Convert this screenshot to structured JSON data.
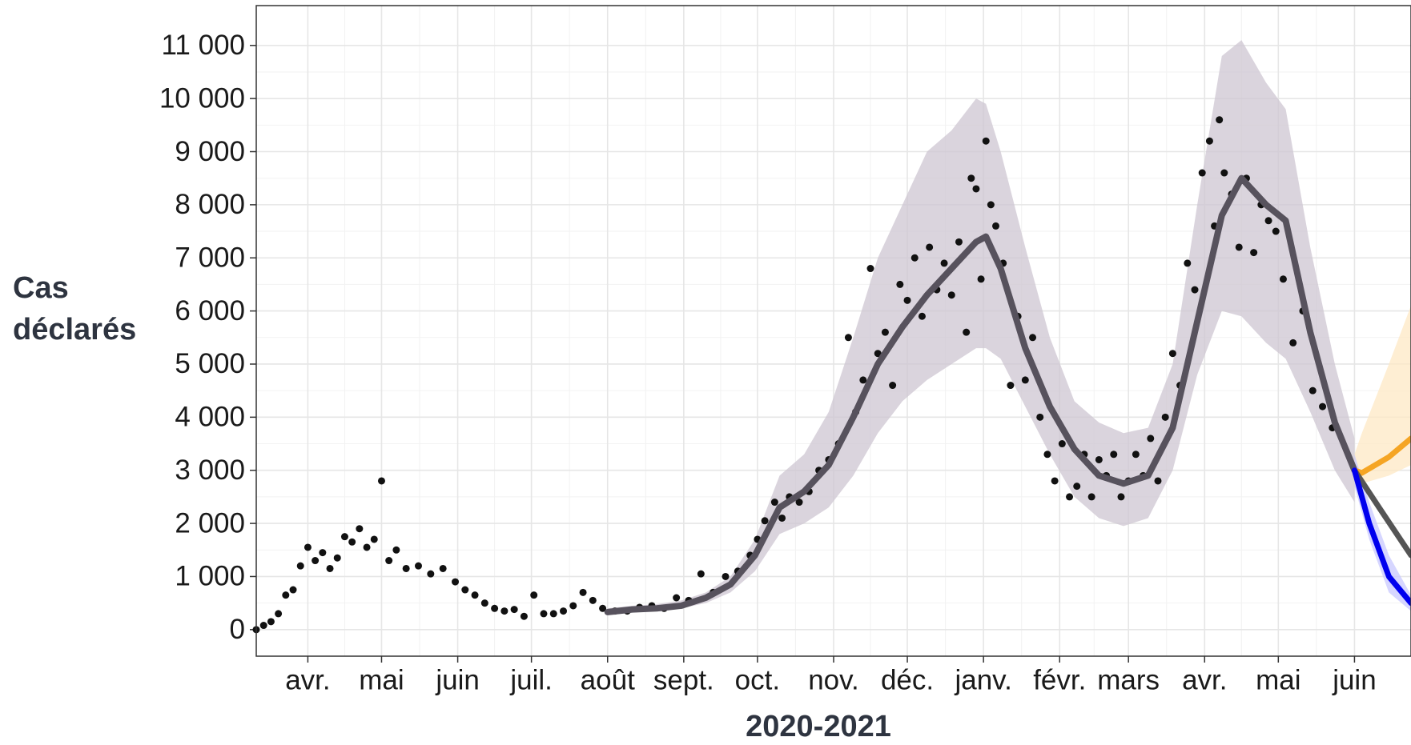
{
  "chart_data": {
    "type": "line",
    "y_label": "Cas déclarés",
    "x_label": "2020-2021",
    "xlim": [
      -21,
      449
    ],
    "ylim": [
      -500,
      11750
    ],
    "grid": true,
    "xticks": [
      {
        "value": 0,
        "label": "avr."
      },
      {
        "value": 30,
        "label": "mai"
      },
      {
        "value": 61,
        "label": "juin"
      },
      {
        "value": 91,
        "label": "juil."
      },
      {
        "value": 122,
        "label": "août"
      },
      {
        "value": 153,
        "label": "sept."
      },
      {
        "value": 183,
        "label": "oct."
      },
      {
        "value": 214,
        "label": "nov."
      },
      {
        "value": 244,
        "label": "déc."
      },
      {
        "value": 275,
        "label": "janv."
      },
      {
        "value": 306,
        "label": "févr."
      },
      {
        "value": 334,
        "label": "mars"
      },
      {
        "value": 365,
        "label": "avr."
      },
      {
        "value": 395,
        "label": "mai"
      },
      {
        "value": 426,
        "label": "juin"
      }
    ],
    "yticks": [
      0,
      {
        "value": 1000,
        "label": "1 000"
      },
      {
        "value": 2000,
        "label": "2 000"
      },
      {
        "value": 3000,
        "label": "3 000"
      },
      {
        "value": 4000,
        "label": "4 000"
      },
      {
        "value": 5000,
        "label": "5 000"
      },
      {
        "value": 6000,
        "label": "6 000"
      },
      {
        "value": 7000,
        "label": "7 000"
      },
      {
        "value": 8000,
        "label": "8 000"
      },
      {
        "value": 9000,
        "label": "9 000"
      },
      {
        "value": 10000,
        "label": "10 000"
      },
      {
        "value": 11000,
        "label": "11 000"
      }
    ],
    "points": {
      "color": "#111111",
      "x": [
        -21,
        -18,
        -15,
        -12,
        -9,
        -6,
        -3,
        0,
        3,
        6,
        9,
        12,
        15,
        18,
        21,
        24,
        27,
        30,
        33,
        36,
        40,
        45,
        50,
        55,
        60,
        64,
        68,
        72,
        76,
        80,
        84,
        88,
        92,
        96,
        100,
        104,
        108,
        112,
        116,
        120,
        125,
        130,
        135,
        140,
        145,
        150,
        155,
        160,
        165,
        170,
        175,
        180,
        183,
        186,
        190,
        193,
        196,
        200,
        204,
        208,
        212,
        216,
        220,
        223,
        226,
        229,
        232,
        235,
        238,
        241,
        244,
        247,
        250,
        253,
        256,
        259,
        262,
        265,
        268,
        270,
        272,
        274,
        276,
        278,
        280,
        283,
        286,
        289,
        292,
        295,
        298,
        301,
        304,
        307,
        310,
        313,
        316,
        319,
        322,
        325,
        328,
        331,
        334,
        337,
        340,
        343,
        346,
        349,
        352,
        355,
        358,
        361,
        364,
        367,
        369,
        371,
        373,
        376,
        379,
        382,
        385,
        388,
        391,
        394,
        397,
        401,
        405,
        409,
        413,
        417
      ],
      "y": [
        0,
        80,
        150,
        300,
        650,
        750,
        1200,
        1550,
        1300,
        1450,
        1150,
        1350,
        1750,
        1650,
        1900,
        1550,
        1700,
        2800,
        1300,
        1500,
        1150,
        1200,
        1050,
        1150,
        900,
        750,
        650,
        500,
        400,
        350,
        380,
        250,
        650,
        300,
        300,
        350,
        450,
        700,
        550,
        400,
        350,
        350,
        420,
        450,
        400,
        600,
        550,
        1050,
        700,
        1000,
        1100,
        1400,
        1700,
        2050,
        2400,
        2100,
        2500,
        2400,
        2600,
        3000,
        3200,
        3500,
        5500,
        4100,
        4700,
        6800,
        5200,
        5600,
        4600,
        6500,
        6200,
        7000,
        5900,
        7200,
        6400,
        6900,
        6300,
        7300,
        5600,
        8500,
        8300,
        6600,
        9200,
        8000,
        7600,
        6900,
        4600,
        5900,
        4700,
        5500,
        4000,
        3300,
        2800,
        3500,
        2500,
        2700,
        3300,
        2500,
        3200,
        2900,
        3300,
        2500,
        2800,
        3300,
        2900,
        3600,
        2800,
        4000,
        5200,
        4600,
        6900,
        6400,
        8600,
        9200,
        7600,
        9600,
        8600,
        8200,
        7200,
        8500,
        7100,
        8000,
        7700,
        7500,
        6600,
        5400,
        6000,
        4500,
        4200,
        3800
      ]
    },
    "smooth": {
      "color": "#57525d",
      "band_color": "#cdc5d2",
      "x": [
        122,
        132,
        142,
        152,
        162,
        172,
        182,
        192,
        202,
        212,
        222,
        232,
        242,
        252,
        262,
        272,
        276,
        282,
        292,
        302,
        312,
        322,
        332,
        342,
        352,
        362,
        372,
        380,
        390,
        398,
        408,
        418,
        426
      ],
      "values": [
        330,
        380,
        400,
        450,
        600,
        850,
        1400,
        2300,
        2600,
        3100,
        4000,
        5000,
        5700,
        6300,
        6800,
        7300,
        7400,
        6800,
        5300,
        4200,
        3400,
        2900,
        2750,
        2900,
        3800,
        5800,
        7800,
        8500,
        8000,
        7700,
        5600,
        3900,
        3000
      ],
      "lower": [
        300,
        330,
        350,
        400,
        500,
        700,
        1100,
        1800,
        2000,
        2300,
        2900,
        3700,
        4300,
        4700,
        5000,
        5300,
        5300,
        5100,
        4200,
        3300,
        2500,
        2100,
        1950,
        2100,
        3000,
        4800,
        6000,
        5900,
        5400,
        5100,
        4100,
        3000,
        2400
      ],
      "upper": [
        400,
        450,
        480,
        550,
        700,
        1000,
        1700,
        2900,
        3300,
        4100,
        5500,
        7000,
        8000,
        9000,
        9400,
        10000,
        9900,
        9000,
        7200,
        5500,
        4300,
        3900,
        3700,
        3800,
        5000,
        8000,
        10800,
        11100,
        10300,
        9800,
        7200,
        5000,
        3600
      ]
    },
    "projections": [
      {
        "color": "#f5a524",
        "band_color": "#fde8c4",
        "x": [
          426,
          429,
          440,
          449
        ],
        "values": [
          3000,
          2950,
          3250,
          3600
        ],
        "lower": [
          2700,
          2750,
          2900,
          3100
        ],
        "upper": [
          3300,
          3700,
          5000,
          6100
        ]
      },
      {
        "color": "#555555",
        "x": [
          426,
          436,
          449
        ],
        "values": [
          3000,
          2300,
          1400
        ]
      },
      {
        "color": "#0000ee",
        "band_color": "#c8c8ff",
        "x": [
          426,
          432,
          440,
          449
        ],
        "values": [
          3000,
          2000,
          1000,
          500
        ],
        "lower": [
          2700,
          1700,
          700,
          350
        ],
        "upper": [
          3300,
          2400,
          1400,
          650
        ]
      }
    ]
  }
}
